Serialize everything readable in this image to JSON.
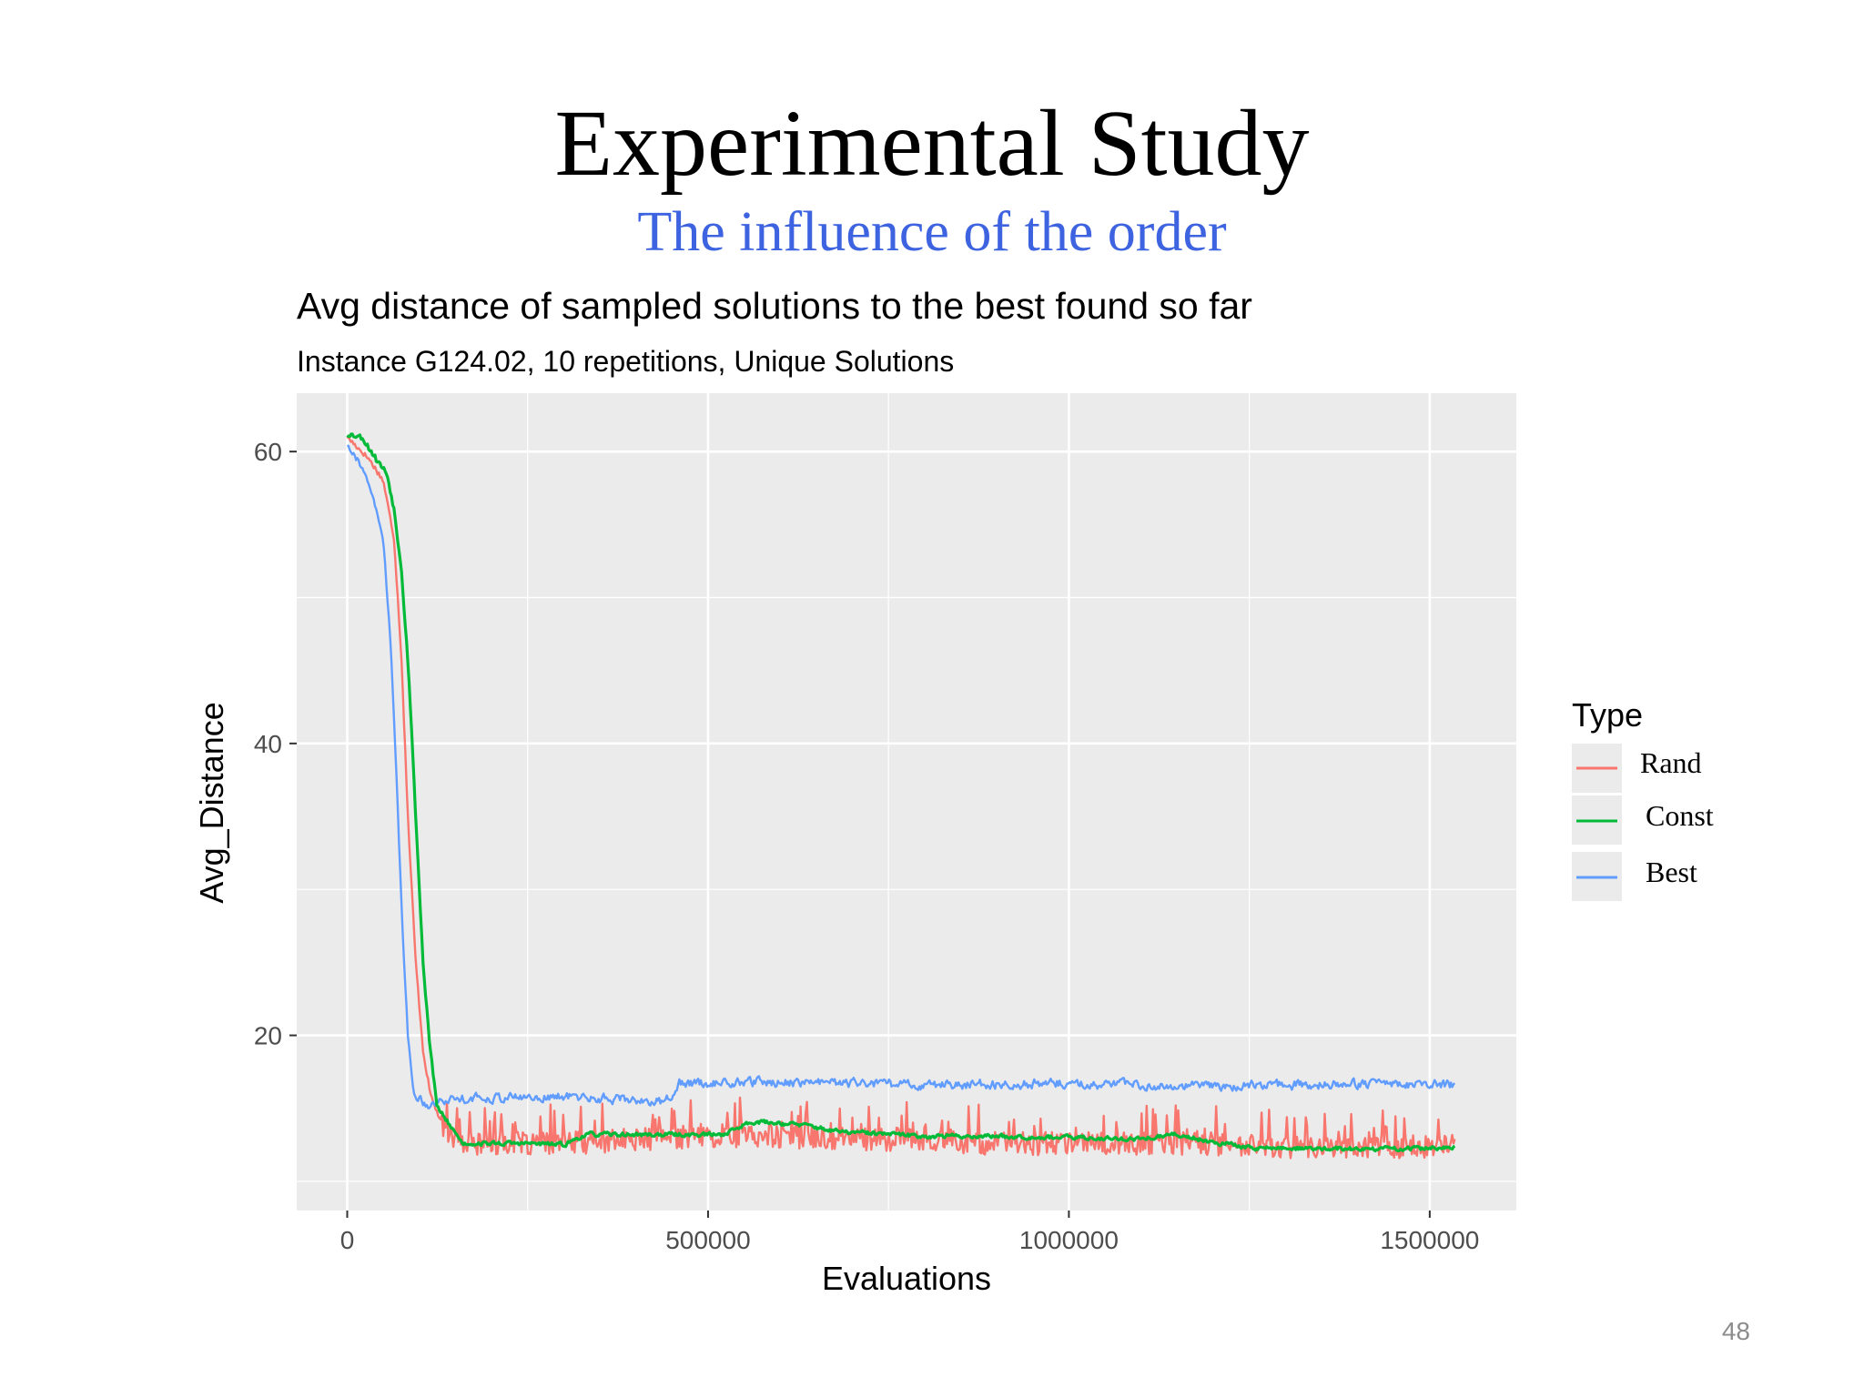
{
  "slide": {
    "title": "Experimental Study",
    "subtitle": "The influence of the order",
    "page_number": "48"
  },
  "colors": {
    "panel": "#ebebeb",
    "grid": "#ffffff",
    "title": "#000000",
    "subtitle": "#3d63e0",
    "rand": "#f8766d",
    "const": "#00ba38",
    "best": "#619cff"
  },
  "chart_data": {
    "type": "line",
    "title": "Avg distance of sampled solutions to the best found so far",
    "subtitle": "Instance G124.02, 10 repetitions, Unique Solutions",
    "xlabel": "Evaluations",
    "ylabel": "Avg_Distance",
    "xlim": [
      -70000,
      1620000
    ],
    "ylim": [
      8,
      64
    ],
    "x_ticks": [
      0,
      500000,
      1000000,
      1500000
    ],
    "x_tick_labels": [
      "0",
      "500000",
      "1000000",
      "1500000"
    ],
    "y_ticks": [
      20,
      40,
      60
    ],
    "y_tick_labels": [
      "20",
      "40",
      "60"
    ],
    "grid": true,
    "legend": {
      "title": "Type",
      "position": "right",
      "entries": [
        "Rand",
        "Const",
        "Best"
      ]
    },
    "series": [
      {
        "name": "Rand",
        "color": "#f8766d",
        "points": [
          [
            0,
            61
          ],
          [
            30000,
            59.5
          ],
          [
            50000,
            58
          ],
          [
            65000,
            54
          ],
          [
            75000,
            46
          ],
          [
            85000,
            34
          ],
          [
            95000,
            25
          ],
          [
            105000,
            19
          ],
          [
            115000,
            16
          ],
          [
            130000,
            14
          ],
          [
            150000,
            12.5
          ],
          [
            200000,
            12.5
          ],
          [
            300000,
            12.5
          ],
          [
            400000,
            12.8
          ],
          [
            500000,
            13
          ],
          [
            600000,
            13
          ],
          [
            700000,
            12.8
          ],
          [
            800000,
            12.8
          ],
          [
            900000,
            12.5
          ],
          [
            1000000,
            12.5
          ],
          [
            1100000,
            12.5
          ],
          [
            1200000,
            12.5
          ],
          [
            1300000,
            12.3
          ],
          [
            1400000,
            12.3
          ],
          [
            1500000,
            12.3
          ],
          [
            1535000,
            12.3
          ]
        ],
        "noise_start": 130000,
        "noise_amplitude": 1.6
      },
      {
        "name": "Const",
        "color": "#00ba38",
        "points": [
          [
            0,
            61.2
          ],
          [
            20000,
            61
          ],
          [
            40000,
            59.5
          ],
          [
            55000,
            58.5
          ],
          [
            65000,
            56
          ],
          [
            75000,
            52
          ],
          [
            85000,
            45
          ],
          [
            95000,
            35
          ],
          [
            105000,
            25
          ],
          [
            115000,
            19
          ],
          [
            125000,
            15
          ],
          [
            140000,
            14
          ],
          [
            160000,
            12.6
          ],
          [
            250000,
            12.6
          ],
          [
            300000,
            12.5
          ],
          [
            330000,
            13.2
          ],
          [
            450000,
            13.2
          ],
          [
            520000,
            13.2
          ],
          [
            560000,
            14.1
          ],
          [
            600000,
            14
          ],
          [
            640000,
            13.8
          ],
          [
            680000,
            13.4
          ],
          [
            800000,
            13.1
          ],
          [
            900000,
            13.1
          ],
          [
            1000000,
            13
          ],
          [
            1100000,
            12.9
          ],
          [
            1150000,
            13.2
          ],
          [
            1200000,
            12.7
          ],
          [
            1250000,
            12.3
          ],
          [
            1400000,
            12.2
          ],
          [
            1535000,
            12.3
          ]
        ],
        "noise_start": 140000,
        "noise_amplitude": 0.25
      },
      {
        "name": "Best",
        "color": "#619cff",
        "points": [
          [
            0,
            60.5
          ],
          [
            20000,
            59
          ],
          [
            35000,
            57
          ],
          [
            50000,
            54
          ],
          [
            60000,
            47
          ],
          [
            68000,
            38
          ],
          [
            76000,
            28
          ],
          [
            84000,
            20
          ],
          [
            92000,
            16
          ],
          [
            110000,
            15.3
          ],
          [
            150000,
            15.7
          ],
          [
            300000,
            15.8
          ],
          [
            400000,
            15.6
          ],
          [
            440000,
            15.4
          ],
          [
            460000,
            16.7
          ],
          [
            600000,
            16.8
          ],
          [
            800000,
            16.6
          ],
          [
            1000000,
            16.7
          ],
          [
            1200000,
            16.5
          ],
          [
            1400000,
            16.7
          ],
          [
            1535000,
            16.6
          ]
        ],
        "noise_start": 95000,
        "noise_amplitude": 0.55
      }
    ]
  }
}
